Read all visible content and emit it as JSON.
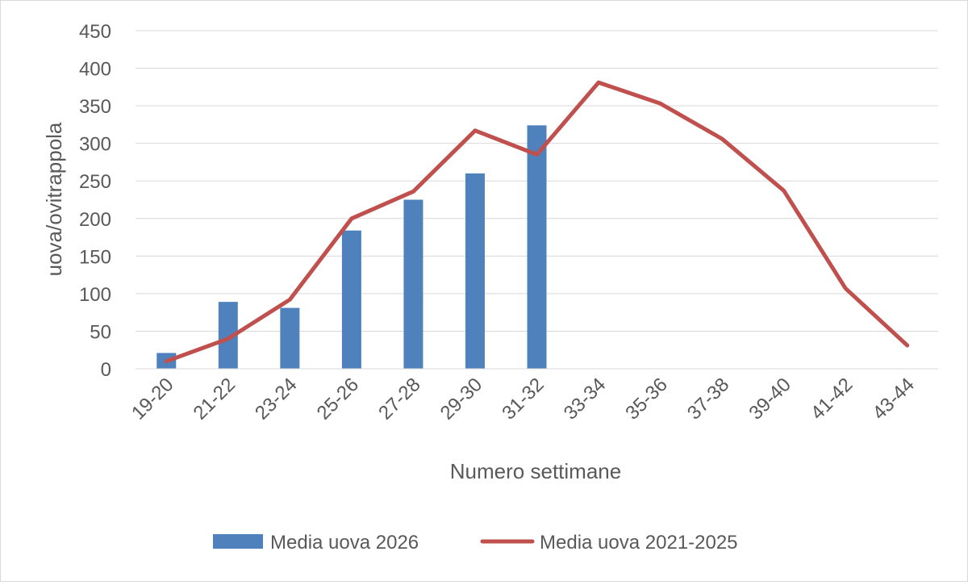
{
  "chart_data": {
    "type": "bar",
    "title": "",
    "xlabel": "Numero settimane",
    "ylabel": "uova/ovitrappola",
    "ylim": [
      0,
      450
    ],
    "yticks": [
      0,
      50,
      100,
      150,
      200,
      250,
      300,
      350,
      400,
      450
    ],
    "grid": true,
    "legend_position": "bottom",
    "categories": [
      "19-20",
      "21-22",
      "23-24",
      "25-26",
      "27-28",
      "29-30",
      "31-32",
      "33-34",
      "35-36",
      "37-38",
      "39-40",
      "41-42",
      "43-44"
    ],
    "series": [
      {
        "name": "Media uova 2026",
        "type": "bar",
        "color": "#4f81bd",
        "values": [
          21,
          89,
          81,
          184,
          225,
          260,
          324,
          null,
          null,
          null,
          null,
          null,
          null
        ]
      },
      {
        "name": "Media uova 2021-2025",
        "type": "line",
        "color": "#c0504d",
        "values": [
          10,
          40,
          92,
          200,
          236,
          317,
          285,
          381,
          353,
          306,
          237,
          107,
          31
        ]
      }
    ]
  }
}
